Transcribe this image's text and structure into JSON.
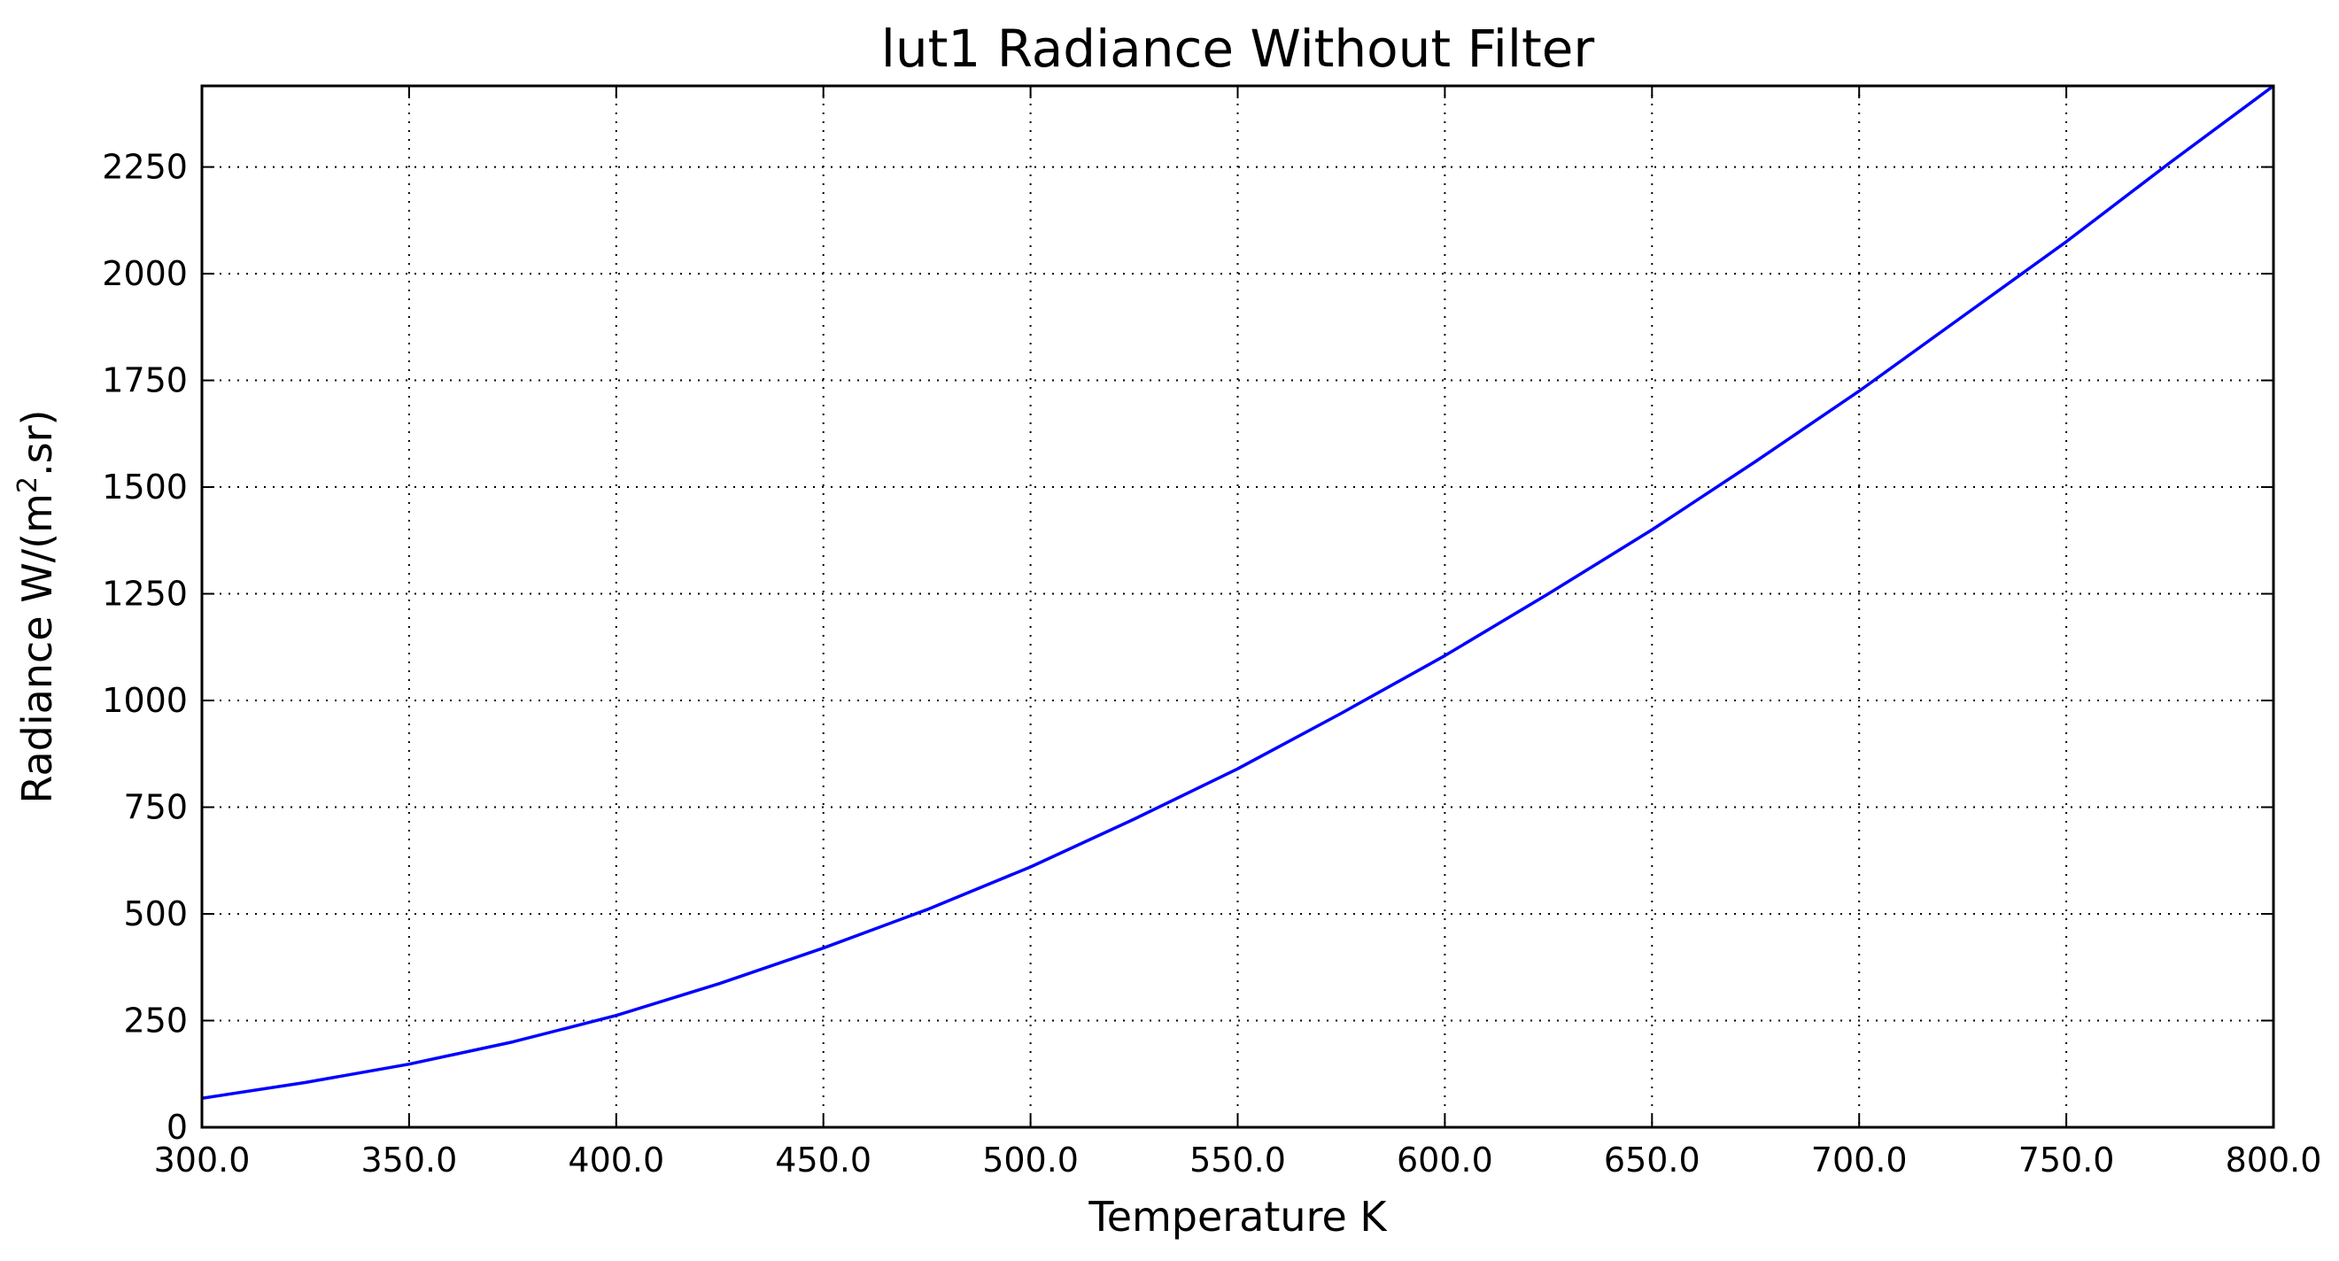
{
  "chart_data": {
    "type": "line",
    "title": "lut1 Radiance Without Filter",
    "xlabel": "Temperature K",
    "ylabel_main": "Radiance W/(m",
    "ylabel_sup": "2",
    "ylabel_end": ".sr)",
    "xlim": [
      300,
      800
    ],
    "ylim": [
      0,
      2440
    ],
    "xticks": [
      300,
      350,
      400,
      450,
      500,
      550,
      600,
      650,
      700,
      750,
      800
    ],
    "xtick_labels": [
      "300.0",
      "350.0",
      "400.0",
      "450.0",
      "500.0",
      "550.0",
      "600.0",
      "650.0",
      "700.0",
      "750.0",
      "800.0"
    ],
    "yticks": [
      0,
      250,
      500,
      750,
      1000,
      1250,
      1500,
      1750,
      2000,
      2250
    ],
    "ytick_labels": [
      "0",
      "250",
      "500",
      "750",
      "1000",
      "1250",
      "1500",
      "1750",
      "2000",
      "2250"
    ],
    "grid": true,
    "series": [
      {
        "color": "#0000ff",
        "x": [
          300,
          325,
          350,
          375,
          400,
          425,
          450,
          475,
          500,
          525,
          550,
          575,
          600,
          625,
          650,
          675,
          700,
          725,
          750,
          775,
          800
        ],
        "y": [
          68,
          105,
          148,
          200,
          262,
          337,
          420,
          510,
          610,
          722,
          840,
          970,
          1105,
          1250,
          1400,
          1560,
          1725,
          1900,
          2075,
          2260,
          2440
        ]
      }
    ]
  }
}
